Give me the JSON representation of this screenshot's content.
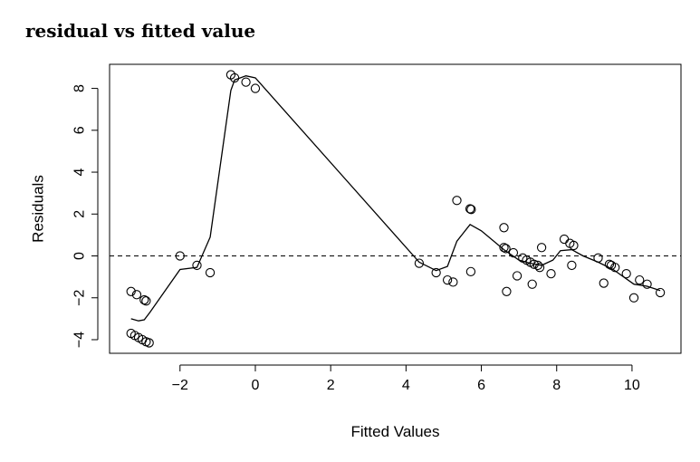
{
  "page_title": "residual vs fitted value",
  "chart_data": {
    "type": "scatter",
    "title": "residual vs fitted value",
    "xlabel": "Fitted Values",
    "ylabel": "Residuals",
    "xlim": [
      -3.87,
      11.3
    ],
    "ylim": [
      -4.65,
      9.15
    ],
    "xticks": [
      -2,
      0,
      2,
      4,
      6,
      8,
      10
    ],
    "yticks": [
      -4,
      -2,
      0,
      2,
      4,
      6,
      8
    ],
    "reference_line": {
      "y": 0,
      "style": "dashed"
    },
    "points": [
      {
        "x": -3.3,
        "y": -1.7
      },
      {
        "x": -3.15,
        "y": -1.85
      },
      {
        "x": -2.95,
        "y": -2.1
      },
      {
        "x": -2.9,
        "y": -2.15
      },
      {
        "x": -3.3,
        "y": -3.7
      },
      {
        "x": -3.2,
        "y": -3.8
      },
      {
        "x": -3.1,
        "y": -3.9
      },
      {
        "x": -3.0,
        "y": -4.0
      },
      {
        "x": -2.9,
        "y": -4.1
      },
      {
        "x": -2.82,
        "y": -4.15
      },
      {
        "x": -2.0,
        "y": 0.0
      },
      {
        "x": -1.55,
        "y": -0.45
      },
      {
        "x": -1.2,
        "y": -0.8
      },
      {
        "x": -0.65,
        "y": 8.65
      },
      {
        "x": -0.55,
        "y": 8.5
      },
      {
        "x": -0.25,
        "y": 8.3
      },
      {
        "x": 0.0,
        "y": 8.0
      },
      {
        "x": 4.35,
        "y": -0.35
      },
      {
        "x": 4.8,
        "y": -0.8
      },
      {
        "x": 5.1,
        "y": -1.15
      },
      {
        "x": 5.25,
        "y": -1.25
      },
      {
        "x": 5.35,
        "y": 2.65
      },
      {
        "x": 5.7,
        "y": 2.25
      },
      {
        "x": 5.73,
        "y": 2.22
      },
      {
        "x": 5.72,
        "y": -0.75
      },
      {
        "x": 6.6,
        "y": 1.35
      },
      {
        "x": 6.6,
        "y": 0.4
      },
      {
        "x": 6.65,
        "y": 0.35
      },
      {
        "x": 6.67,
        "y": -1.7
      },
      {
        "x": 6.85,
        "y": 0.15
      },
      {
        "x": 6.95,
        "y": -0.95
      },
      {
        "x": 7.1,
        "y": -0.1
      },
      {
        "x": 7.2,
        "y": -0.2
      },
      {
        "x": 7.3,
        "y": -0.3
      },
      {
        "x": 7.4,
        "y": -0.4
      },
      {
        "x": 7.5,
        "y": -0.45
      },
      {
        "x": 7.55,
        "y": -0.55
      },
      {
        "x": 7.35,
        "y": -1.35
      },
      {
        "x": 7.6,
        "y": 0.4
      },
      {
        "x": 7.85,
        "y": -0.85
      },
      {
        "x": 8.2,
        "y": 0.8
      },
      {
        "x": 8.35,
        "y": 0.6
      },
      {
        "x": 8.45,
        "y": 0.5
      },
      {
        "x": 8.4,
        "y": -0.45
      },
      {
        "x": 9.1,
        "y": -0.1
      },
      {
        "x": 9.25,
        "y": -1.3
      },
      {
        "x": 9.4,
        "y": -0.4
      },
      {
        "x": 9.45,
        "y": -0.45
      },
      {
        "x": 9.55,
        "y": -0.55
      },
      {
        "x": 9.85,
        "y": -0.85
      },
      {
        "x": 10.05,
        "y": -2.0
      },
      {
        "x": 10.2,
        "y": -1.15
      },
      {
        "x": 10.4,
        "y": -1.35
      },
      {
        "x": 10.75,
        "y": -1.75
      }
    ],
    "smooth_line": [
      {
        "x": -3.3,
        "y": -3.0
      },
      {
        "x": -3.1,
        "y": -3.1
      },
      {
        "x": -2.95,
        "y": -3.05
      },
      {
        "x": -2.8,
        "y": -2.7
      },
      {
        "x": -2.0,
        "y": -0.65
      },
      {
        "x": -1.55,
        "y": -0.55
      },
      {
        "x": -1.2,
        "y": 0.9
      },
      {
        "x": -0.65,
        "y": 7.9
      },
      {
        "x": -0.55,
        "y": 8.4
      },
      {
        "x": -0.25,
        "y": 8.6
      },
      {
        "x": 0.0,
        "y": 8.5
      },
      {
        "x": 4.35,
        "y": -0.3
      },
      {
        "x": 4.8,
        "y": -0.7
      },
      {
        "x": 5.1,
        "y": -0.5
      },
      {
        "x": 5.35,
        "y": 0.7
      },
      {
        "x": 5.7,
        "y": 1.5
      },
      {
        "x": 6.0,
        "y": 1.2
      },
      {
        "x": 6.6,
        "y": 0.3
      },
      {
        "x": 7.0,
        "y": -0.2
      },
      {
        "x": 7.3,
        "y": -0.35
      },
      {
        "x": 7.6,
        "y": -0.45
      },
      {
        "x": 7.9,
        "y": -0.2
      },
      {
        "x": 8.1,
        "y": 0.25
      },
      {
        "x": 8.4,
        "y": 0.3
      },
      {
        "x": 8.7,
        "y": 0.0
      },
      {
        "x": 9.1,
        "y": -0.3
      },
      {
        "x": 9.5,
        "y": -0.65
      },
      {
        "x": 10.05,
        "y": -1.35
      },
      {
        "x": 10.4,
        "y": -1.45
      },
      {
        "x": 10.75,
        "y": -1.65
      }
    ],
    "grid": false,
    "legend": "none"
  }
}
